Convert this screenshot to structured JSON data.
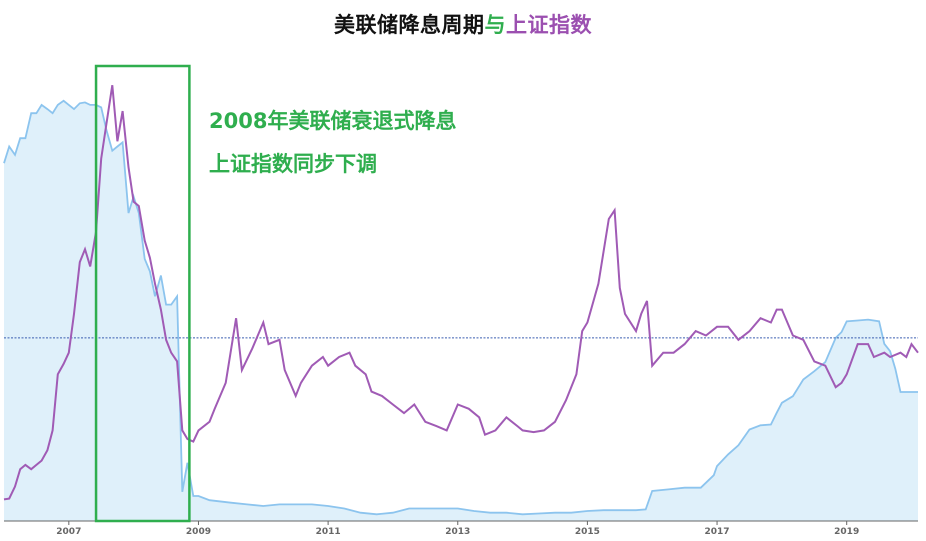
{
  "title": {
    "part1": "美联储降息周期",
    "part2": "与",
    "part3": "上证指数"
  },
  "annotation": {
    "line1": "2008年美联储衰退式降息",
    "line2": "上证指数同步下调"
  },
  "colors": {
    "fed_fill": "#dff0fa",
    "fed_line": "#8cc4ee",
    "sse_line": "#a05bb5",
    "highlight": "#2fae4e",
    "reference_line": "#3a5db0"
  },
  "chart_data": {
    "type": "line",
    "title": "美联储降息周期与上证指数",
    "xlabel": "",
    "ylabel": "",
    "x_range": [
      2006.0,
      2020.1
    ],
    "x_ticks": [
      "2007",
      "2009",
      "2011",
      "2013",
      "2015",
      "2017",
      "2019"
    ],
    "highlight_range": [
      2007.42,
      2008.86
    ],
    "series": [
      {
        "role": "fed",
        "style": "area",
        "ylim": [
          0,
          5.6
        ],
        "points": [
          [
            2006.0,
            4.3
          ],
          [
            2006.08,
            4.5
          ],
          [
            2006.17,
            4.4
          ],
          [
            2006.25,
            4.6
          ],
          [
            2006.33,
            4.6
          ],
          [
            2006.42,
            4.9
          ],
          [
            2006.5,
            4.9
          ],
          [
            2006.58,
            5.0
          ],
          [
            2006.67,
            4.95
          ],
          [
            2006.75,
            4.9
          ],
          [
            2006.83,
            5.0
          ],
          [
            2006.92,
            5.05
          ],
          [
            2007.0,
            5.0
          ],
          [
            2007.08,
            4.95
          ],
          [
            2007.17,
            5.02
          ],
          [
            2007.25,
            5.03
          ],
          [
            2007.33,
            5.0
          ],
          [
            2007.42,
            5.0
          ],
          [
            2007.5,
            4.97
          ],
          [
            2007.58,
            4.7
          ],
          [
            2007.67,
            4.45
          ],
          [
            2007.75,
            4.5
          ],
          [
            2007.83,
            4.55
          ],
          [
            2007.92,
            3.7
          ],
          [
            2008.0,
            3.9
          ],
          [
            2008.08,
            3.7
          ],
          [
            2008.17,
            3.15
          ],
          [
            2008.25,
            3.0
          ],
          [
            2008.33,
            2.7
          ],
          [
            2008.42,
            2.95
          ],
          [
            2008.5,
            2.6
          ],
          [
            2008.58,
            2.6
          ],
          [
            2008.67,
            2.7
          ],
          [
            2008.75,
            0.35
          ],
          [
            2008.83,
            0.7
          ],
          [
            2008.92,
            0.3
          ],
          [
            2009.0,
            0.3
          ],
          [
            2009.17,
            0.25
          ],
          [
            2009.5,
            0.22
          ],
          [
            2009.75,
            0.2
          ],
          [
            2010.0,
            0.18
          ],
          [
            2010.25,
            0.2
          ],
          [
            2010.5,
            0.2
          ],
          [
            2010.75,
            0.2
          ],
          [
            2011.0,
            0.18
          ],
          [
            2011.25,
            0.15
          ],
          [
            2011.5,
            0.1
          ],
          [
            2011.75,
            0.08
          ],
          [
            2012.0,
            0.1
          ],
          [
            2012.25,
            0.15
          ],
          [
            2012.5,
            0.15
          ],
          [
            2012.75,
            0.15
          ],
          [
            2013.0,
            0.15
          ],
          [
            2013.25,
            0.12
          ],
          [
            2013.5,
            0.1
          ],
          [
            2013.75,
            0.1
          ],
          [
            2014.0,
            0.08
          ],
          [
            2014.25,
            0.09
          ],
          [
            2014.5,
            0.1
          ],
          [
            2014.75,
            0.1
          ],
          [
            2015.0,
            0.12
          ],
          [
            2015.25,
            0.13
          ],
          [
            2015.5,
            0.13
          ],
          [
            2015.75,
            0.13
          ],
          [
            2015.9,
            0.14
          ],
          [
            2016.0,
            0.36
          ],
          [
            2016.25,
            0.38
          ],
          [
            2016.5,
            0.4
          ],
          [
            2016.75,
            0.4
          ],
          [
            2016.95,
            0.55
          ],
          [
            2017.0,
            0.66
          ],
          [
            2017.17,
            0.8
          ],
          [
            2017.33,
            0.91
          ],
          [
            2017.5,
            1.1
          ],
          [
            2017.67,
            1.15
          ],
          [
            2017.83,
            1.16
          ],
          [
            2017.92,
            1.3
          ],
          [
            2018.0,
            1.42
          ],
          [
            2018.17,
            1.5
          ],
          [
            2018.33,
            1.7
          ],
          [
            2018.5,
            1.8
          ],
          [
            2018.67,
            1.91
          ],
          [
            2018.83,
            2.2
          ],
          [
            2018.92,
            2.27
          ],
          [
            2019.0,
            2.4
          ],
          [
            2019.17,
            2.41
          ],
          [
            2019.33,
            2.42
          ],
          [
            2019.5,
            2.4
          ],
          [
            2019.58,
            2.13
          ],
          [
            2019.67,
            2.04
          ],
          [
            2019.75,
            1.83
          ],
          [
            2019.83,
            1.55
          ],
          [
            2019.92,
            1.55
          ],
          [
            2020.0,
            1.55
          ],
          [
            2020.1,
            1.55
          ]
        ]
      },
      {
        "role": "sse",
        "style": "line",
        "ylim": [
          1000,
          6400
        ],
        "points": [
          [
            2006.0,
            1250
          ],
          [
            2006.08,
            1260
          ],
          [
            2006.17,
            1400
          ],
          [
            2006.25,
            1600
          ],
          [
            2006.33,
            1650
          ],
          [
            2006.42,
            1600
          ],
          [
            2006.5,
            1650
          ],
          [
            2006.58,
            1700
          ],
          [
            2006.67,
            1820
          ],
          [
            2006.75,
            2050
          ],
          [
            2006.83,
            2700
          ],
          [
            2006.92,
            2820
          ],
          [
            2007.0,
            2950
          ],
          [
            2007.08,
            3400
          ],
          [
            2007.17,
            4000
          ],
          [
            2007.25,
            4150
          ],
          [
            2007.33,
            3950
          ],
          [
            2007.42,
            4350
          ],
          [
            2007.5,
            5200
          ],
          [
            2007.58,
            5600
          ],
          [
            2007.67,
            6050
          ],
          [
            2007.75,
            5400
          ],
          [
            2007.83,
            5750
          ],
          [
            2007.92,
            5100
          ],
          [
            2008.0,
            4700
          ],
          [
            2008.08,
            4650
          ],
          [
            2008.17,
            4250
          ],
          [
            2008.25,
            4050
          ],
          [
            2008.33,
            3750
          ],
          [
            2008.42,
            3450
          ],
          [
            2008.5,
            3100
          ],
          [
            2008.58,
            2950
          ],
          [
            2008.67,
            2850
          ],
          [
            2008.75,
            2050
          ],
          [
            2008.83,
            1950
          ],
          [
            2008.92,
            1920
          ],
          [
            2009.0,
            2050
          ],
          [
            2009.17,
            2150
          ],
          [
            2009.25,
            2300
          ],
          [
            2009.42,
            2600
          ],
          [
            2009.58,
            3350
          ],
          [
            2009.67,
            2750
          ],
          [
            2009.83,
            3000
          ],
          [
            2010.0,
            3300
          ],
          [
            2010.08,
            3050
          ],
          [
            2010.25,
            3100
          ],
          [
            2010.33,
            2750
          ],
          [
            2010.5,
            2450
          ],
          [
            2010.58,
            2600
          ],
          [
            2010.75,
            2800
          ],
          [
            2010.92,
            2900
          ],
          [
            2011.0,
            2800
          ],
          [
            2011.17,
            2900
          ],
          [
            2011.33,
            2950
          ],
          [
            2011.42,
            2800
          ],
          [
            2011.58,
            2700
          ],
          [
            2011.67,
            2500
          ],
          [
            2011.83,
            2450
          ],
          [
            2012.0,
            2350
          ],
          [
            2012.17,
            2250
          ],
          [
            2012.33,
            2350
          ],
          [
            2012.5,
            2150
          ],
          [
            2012.67,
            2100
          ],
          [
            2012.83,
            2050
          ],
          [
            2013.0,
            2350
          ],
          [
            2013.17,
            2300
          ],
          [
            2013.33,
            2200
          ],
          [
            2013.42,
            2000
          ],
          [
            2013.58,
            2050
          ],
          [
            2013.75,
            2200
          ],
          [
            2013.92,
            2100
          ],
          [
            2014.0,
            2050
          ],
          [
            2014.17,
            2030
          ],
          [
            2014.33,
            2050
          ],
          [
            2014.5,
            2150
          ],
          [
            2014.67,
            2400
          ],
          [
            2014.83,
            2700
          ],
          [
            2014.92,
            3200
          ],
          [
            2015.0,
            3300
          ],
          [
            2015.17,
            3750
          ],
          [
            2015.33,
            4500
          ],
          [
            2015.42,
            4600
          ],
          [
            2015.5,
            3700
          ],
          [
            2015.58,
            3400
          ],
          [
            2015.75,
            3200
          ],
          [
            2015.83,
            3400
          ],
          [
            2015.92,
            3550
          ],
          [
            2016.0,
            2800
          ],
          [
            2016.17,
            2950
          ],
          [
            2016.33,
            2950
          ],
          [
            2016.5,
            3050
          ],
          [
            2016.67,
            3200
          ],
          [
            2016.83,
            3150
          ],
          [
            2017.0,
            3250
          ],
          [
            2017.17,
            3250
          ],
          [
            2017.33,
            3100
          ],
          [
            2017.5,
            3200
          ],
          [
            2017.67,
            3350
          ],
          [
            2017.83,
            3300
          ],
          [
            2017.92,
            3450
          ],
          [
            2018.0,
            3450
          ],
          [
            2018.17,
            3150
          ],
          [
            2018.33,
            3100
          ],
          [
            2018.5,
            2850
          ],
          [
            2018.67,
            2800
          ],
          [
            2018.83,
            2550
          ],
          [
            2018.92,
            2600
          ],
          [
            2019.0,
            2700
          ],
          [
            2019.17,
            3050
          ],
          [
            2019.33,
            3050
          ],
          [
            2019.42,
            2900
          ],
          [
            2019.58,
            2950
          ],
          [
            2019.67,
            2900
          ],
          [
            2019.83,
            2950
          ],
          [
            2019.92,
            2900
          ],
          [
            2020.0,
            3050
          ],
          [
            2020.1,
            2950
          ]
        ]
      }
    ],
    "reference_line": {
      "role": "fed",
      "y": 2.2
    }
  }
}
